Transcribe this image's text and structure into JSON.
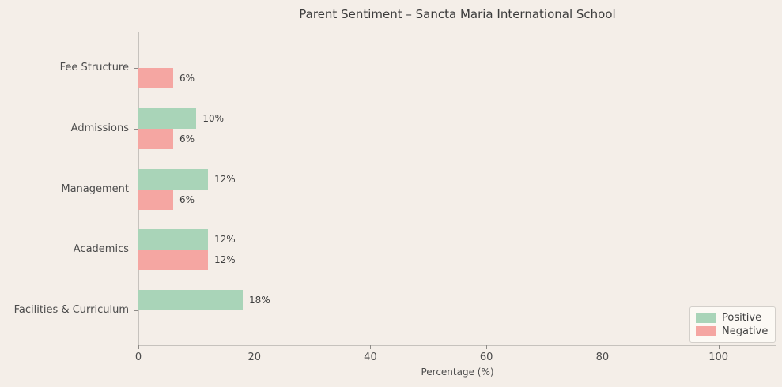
{
  "title": "Parent Sentiment – Sancta Maria International School",
  "chart_data": {
    "type": "bar",
    "orientation": "horizontal",
    "title": "Parent Sentiment – Sancta Maria International School",
    "categories_top_to_bottom": [
      "Fee Structure",
      "Admissions",
      "Management",
      "Academics",
      "Facilities & Curriculum"
    ],
    "series": [
      {
        "name": "Positive",
        "color": "#a9d4b8",
        "values": [
          0,
          10,
          12,
          12,
          18
        ]
      },
      {
        "name": "Negative",
        "color": "#f5a6a2",
        "values": [
          6,
          6,
          6,
          12,
          0
        ]
      }
    ],
    "value_labels": [
      [
        "",
        "10%",
        "12%",
        "12%",
        "18%"
      ],
      [
        "6%",
        "6%",
        "6%",
        "12%",
        ""
      ]
    ],
    "xlabel": "Percentage (%)",
    "xlim": [
      0,
      110
    ],
    "xticks": [
      0,
      20,
      40,
      60,
      80,
      100
    ],
    "grid": false,
    "legend_position": "lower right",
    "background_color": "#f4eee8",
    "spine_color": "#c6c2bd",
    "text_color": "#4b4b4b"
  }
}
